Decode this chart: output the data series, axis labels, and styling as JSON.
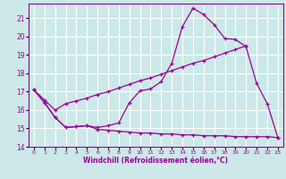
{
  "xlabel": "Windchill (Refroidissement éolien,°C)",
  "background_color": "#cce8e8",
  "grid_color": "#ffffff",
  "line_color": "#990099",
  "xlim": [
    -0.5,
    23.5
  ],
  "ylim": [
    14,
    21.8
  ],
  "yticks": [
    14,
    15,
    16,
    17,
    18,
    19,
    20,
    21
  ],
  "xticks": [
    0,
    1,
    2,
    3,
    4,
    5,
    6,
    7,
    8,
    9,
    10,
    11,
    12,
    13,
    14,
    15,
    16,
    17,
    18,
    19,
    20,
    21,
    22,
    23
  ],
  "curve1_x": [
    0,
    1,
    2,
    3,
    4,
    5,
    6,
    7,
    8,
    9,
    10,
    11,
    12,
    13,
    14,
    15,
    16,
    17,
    18,
    19,
    20,
    21,
    22,
    23
  ],
  "curve1_y": [
    17.1,
    16.4,
    15.6,
    15.05,
    15.1,
    15.15,
    15.05,
    15.15,
    15.3,
    16.4,
    17.05,
    17.15,
    17.55,
    18.55,
    20.55,
    21.55,
    21.2,
    20.65,
    19.9,
    19.85,
    19.45,
    17.45,
    16.35,
    14.5
  ],
  "curve2_x": [
    0,
    1,
    2,
    3,
    4,
    5,
    6,
    7,
    8,
    9,
    10,
    11,
    12,
    13,
    14,
    15,
    16,
    17,
    18,
    19,
    20
  ],
  "curve2_y": [
    17.1,
    16.55,
    16.0,
    16.35,
    16.5,
    16.65,
    16.85,
    17.0,
    17.2,
    17.4,
    17.6,
    17.75,
    17.95,
    18.15,
    18.35,
    18.55,
    18.7,
    18.9,
    19.1,
    19.3,
    19.5
  ],
  "curve3_x": [
    0,
    1,
    2,
    3,
    4,
    5,
    6,
    7,
    8,
    9,
    10,
    11,
    12,
    13,
    14,
    15,
    16,
    17,
    18,
    19,
    20,
    21,
    22,
    23
  ],
  "curve3_y": [
    17.1,
    16.4,
    15.6,
    15.05,
    15.1,
    15.15,
    14.95,
    14.9,
    14.85,
    14.8,
    14.75,
    14.75,
    14.7,
    14.7,
    14.65,
    14.65,
    14.6,
    14.6,
    14.6,
    14.55,
    14.55,
    14.55,
    14.55,
    14.5
  ]
}
